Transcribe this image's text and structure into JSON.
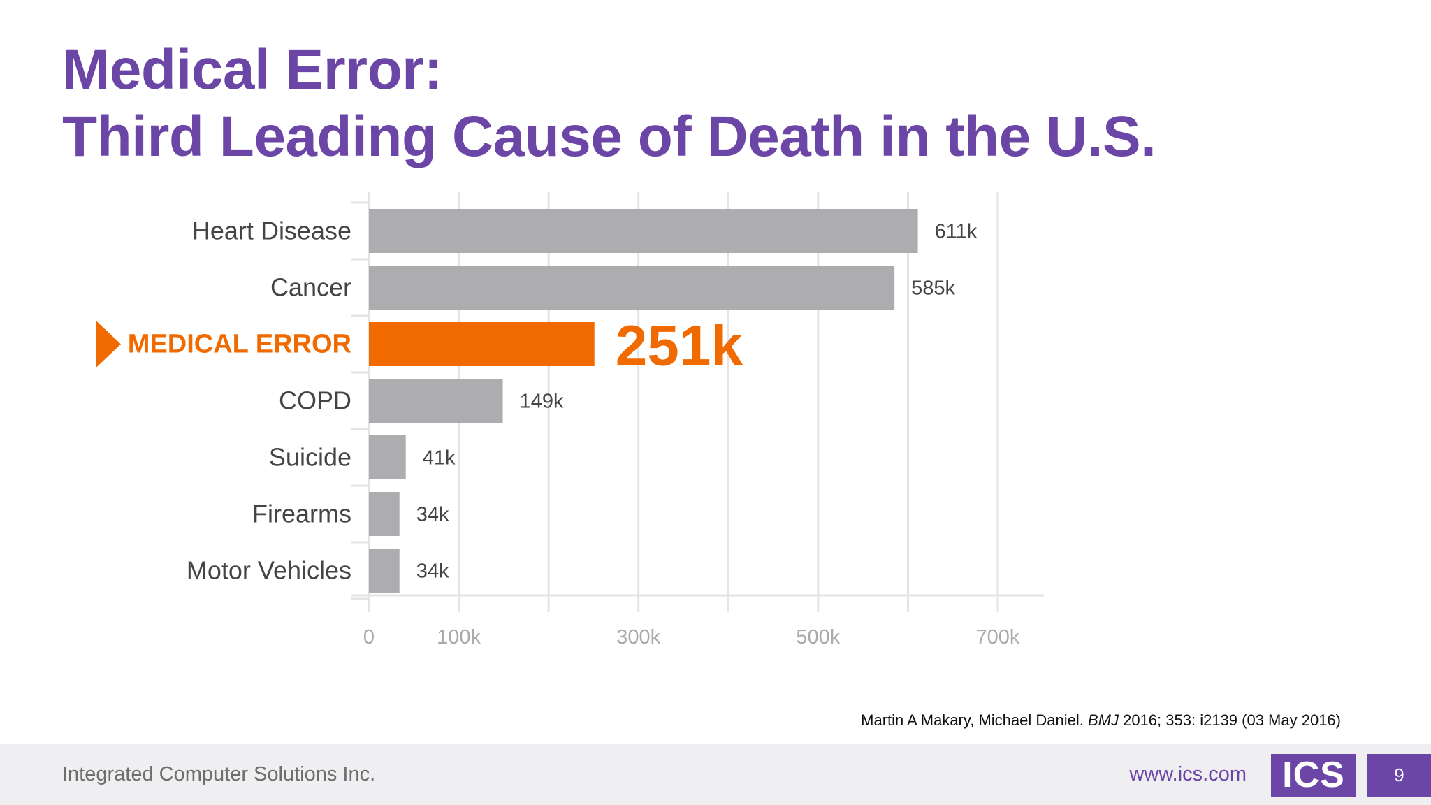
{
  "slide": {
    "title_line1": "Medical Error:",
    "title_line2": "Third Leading Cause of Death in the U.S.",
    "citation": {
      "authors": "Martin A Makary,  Michael Daniel. ",
      "journal": "BMJ",
      "details": " 2016; 353: i2139 (03 May 2016)"
    },
    "footer": {
      "company": "Integrated Computer Solutions Inc.",
      "website": "www.ics.com",
      "logo": "ICS",
      "page_number": "9"
    }
  },
  "colors": {
    "title": "#6b46a6",
    "bar": "#adacae",
    "highlight": "#f06a00",
    "grid": "#e4e3e6",
    "label": "#444444",
    "tick": "#aaaaaa",
    "footer_bg": "#efeef1",
    "logo_bg": "#6b46a6"
  },
  "chart_data": {
    "type": "bar",
    "orientation": "horizontal",
    "categories": [
      "Heart Disease",
      "Cancer",
      "MEDICAL ERROR",
      "COPD",
      "Suicide",
      "Firearms",
      "Motor Vehicles"
    ],
    "values": [
      611000,
      585000,
      251000,
      149000,
      41000,
      34000,
      34000
    ],
    "value_labels": [
      "611k",
      "585k",
      "251k",
      "149k",
      "41k",
      "34k",
      "34k"
    ],
    "highlight_index": 2,
    "highlight_marker": "arrow-right",
    "xlim": [
      0,
      700000
    ],
    "xticks": [
      0,
      100000,
      200000,
      300000,
      400000,
      500000,
      600000,
      700000
    ],
    "xtick_labels": [
      "0",
      "100k",
      "",
      "300k",
      "",
      "500k",
      "",
      "700k"
    ],
    "grid": true,
    "title": "",
    "xlabel": "",
    "ylabel": ""
  }
}
